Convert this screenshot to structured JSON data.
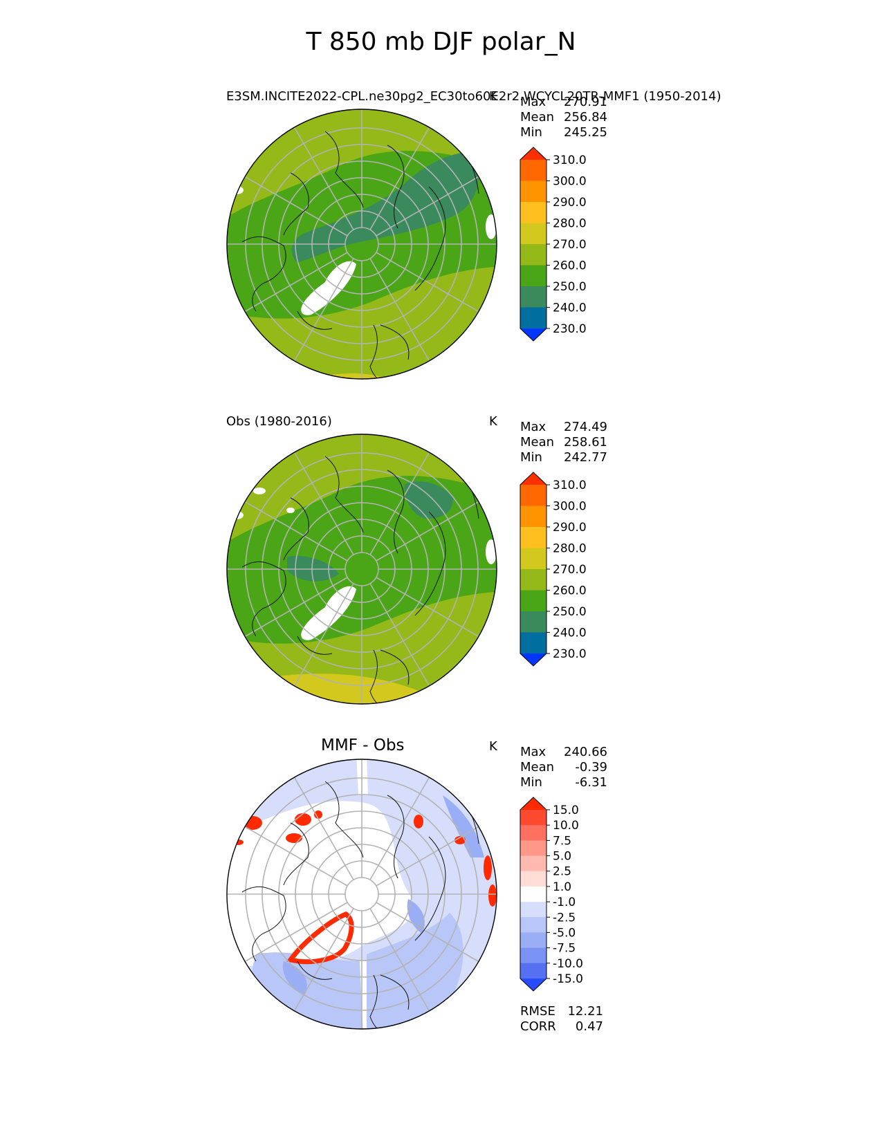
{
  "figure": {
    "title": "T 850 mb DJF polar_N"
  },
  "panels": [
    {
      "id": "model",
      "title_left": "E3SM.INCITE2022-CPL.ne30pg2_EC30to60E2r2.WCYCL20TR-MMF1 (1950-2014)",
      "title_center": "",
      "units": "K",
      "stats": [
        {
          "label": "Max",
          "value": "270.91"
        },
        {
          "label": "Mean",
          "value": "256.84"
        },
        {
          "label": "Min",
          "value": "245.25"
        }
      ]
    },
    {
      "id": "obs",
      "title_left": "Obs (1980-2016)",
      "title_center": "",
      "units": "K",
      "stats": [
        {
          "label": "Max",
          "value": "274.49"
        },
        {
          "label": "Mean",
          "value": "258.61"
        },
        {
          "label": "Min",
          "value": "242.77"
        }
      ]
    },
    {
      "id": "diff",
      "title_left": "",
      "title_center": "MMF - Obs",
      "units": "K",
      "stats": [
        {
          "label": "Max",
          "value": "240.66"
        },
        {
          "label": "Mean",
          "value": "-0.39"
        },
        {
          "label": "Min",
          "value": "-6.31"
        }
      ],
      "metrics": [
        {
          "label": "RMSE",
          "value": "12.21"
        },
        {
          "label": "CORR",
          "value": "0.47"
        }
      ]
    }
  ],
  "colorbars": {
    "absolute": {
      "tick_labels": [
        "310.0",
        "300.0",
        "290.0",
        "280.0",
        "270.0",
        "260.0",
        "250.0",
        "240.0",
        "230.0"
      ],
      "colors_top_to_bottom": [
        "#ff3000",
        "#ff6800",
        "#ff9400",
        "#ffbf1e",
        "#d2c81e",
        "#94b918",
        "#4aa616",
        "#3a8a5e",
        "#006e9e",
        "#0036ff"
      ]
    },
    "difference": {
      "tick_labels": [
        "15.0",
        "10.0",
        "7.5",
        "5.0",
        "2.5",
        "1.0",
        "-1.0",
        "-2.5",
        "-5.0",
        "-7.5",
        "-10.0",
        "-15.0"
      ],
      "colors_top_to_bottom": [
        "#ff2a00",
        "#ff4a30",
        "#ff7060",
        "#ff9888",
        "#ffbab0",
        "#ffdcd6",
        "#ffffff",
        "#d6defb",
        "#b8c6f8",
        "#9aaef6",
        "#7a92f4",
        "#5670f2",
        "#2a4cff"
      ]
    }
  },
  "chart_data": [
    {
      "type": "heatmap",
      "projection": "north-polar-stereographic",
      "title": "E3SM.INCITE2022-CPL.ne30pg2_EC30to60E2r2.WCYCL20TR-MMF1 (1950-2014)",
      "units": "K",
      "max": 270.91,
      "mean": 256.84,
      "min": 245.25,
      "levels": [
        230,
        240,
        250,
        260,
        270,
        280,
        290,
        300,
        310
      ],
      "extend": "both"
    },
    {
      "type": "heatmap",
      "projection": "north-polar-stereographic",
      "title": "Obs (1980-2016)",
      "units": "K",
      "max": 274.49,
      "mean": 258.61,
      "min": 242.77,
      "levels": [
        230,
        240,
        250,
        260,
        270,
        280,
        290,
        300,
        310
      ],
      "extend": "both"
    },
    {
      "type": "heatmap",
      "projection": "north-polar-stereographic",
      "title": "MMF - Obs",
      "units": "K",
      "max": 240.66,
      "mean": -0.39,
      "min": -6.31,
      "rmse": 12.21,
      "corr": 0.47,
      "levels": [
        -15,
        -10,
        -7.5,
        -5,
        -2.5,
        -1,
        1,
        2.5,
        5,
        7.5,
        10,
        15
      ],
      "extend": "both"
    }
  ]
}
